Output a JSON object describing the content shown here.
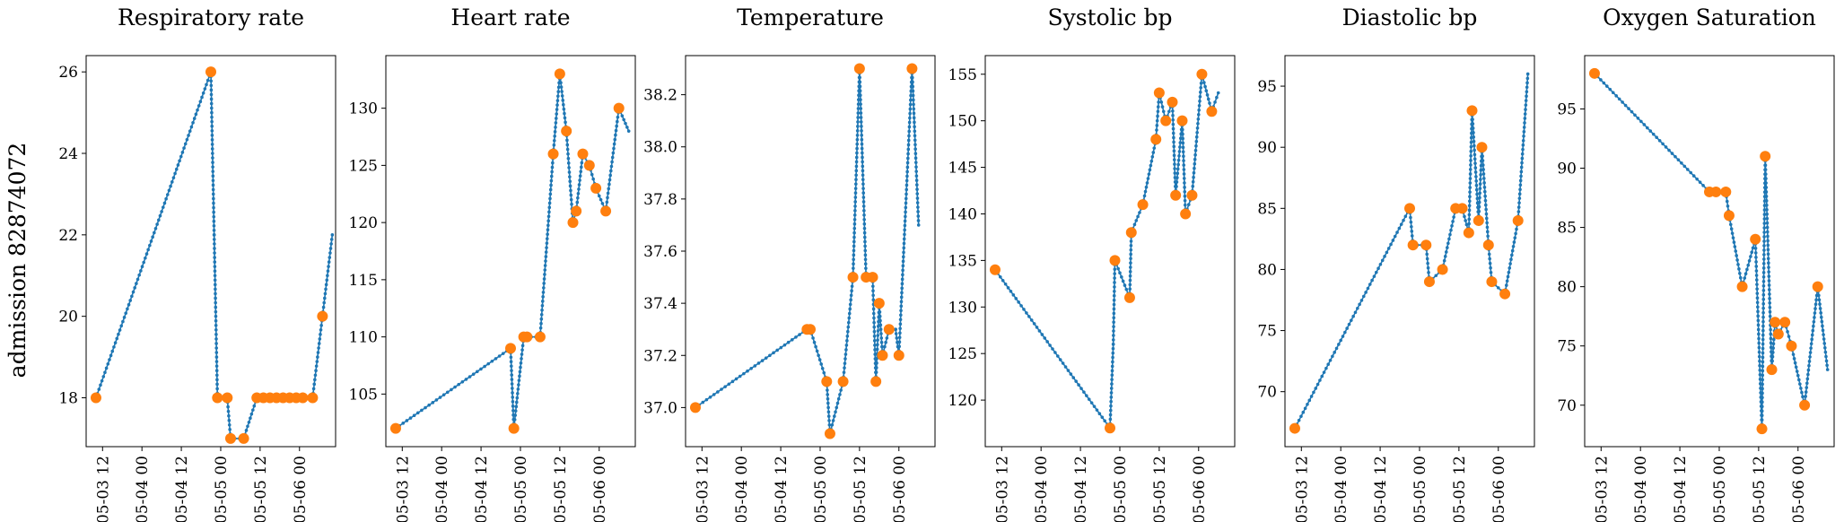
{
  "row_label": "admission 82874072",
  "colors": {
    "line": "#1f77b4",
    "highlight": "#ff7f0e"
  },
  "chart_data": [
    {
      "type": "line",
      "title": "Respiratory rate",
      "x_ticks": [
        "05-03 12",
        "05-04 00",
        "05-04 12",
        "05-05 00",
        "05-05 12",
        "05-06 00"
      ],
      "y_ticks": [
        "18",
        "20",
        "22",
        "24",
        "26"
      ],
      "ylim": [
        16.8,
        26.4
      ],
      "series": [
        {
          "values": [
            {
              "t": "05-03 10:00",
              "v": 18
            },
            {
              "t": "05-04 21:00",
              "v": 26
            },
            {
              "t": "05-04 22:00",
              "v": 22
            },
            {
              "t": "05-04 23:00",
              "v": 18
            },
            {
              "t": "05-05 02:00",
              "v": 18
            },
            {
              "t": "05-05 03:00",
              "v": 17
            },
            {
              "t": "05-05 07:00",
              "v": 17
            },
            {
              "t": "05-05 11:00",
              "v": 18
            },
            {
              "t": "05-05 13:00",
              "v": 18
            },
            {
              "t": "05-05 15:00",
              "v": 18
            },
            {
              "t": "05-05 17:00",
              "v": 18
            },
            {
              "t": "05-05 19:00",
              "v": 18
            },
            {
              "t": "05-05 21:00",
              "v": 18
            },
            {
              "t": "05-05 23:00",
              "v": 18
            },
            {
              "t": "05-06 01:00",
              "v": 18
            },
            {
              "t": "05-06 04:00",
              "v": 18
            },
            {
              "t": "05-06 07:00",
              "v": 20
            },
            {
              "t": "05-06 10:00",
              "v": 22
            }
          ]
        }
      ],
      "highlight": [
        {
          "t": "05-03 10:00",
          "v": 18
        },
        {
          "t": "05-04 21:00",
          "v": 26
        },
        {
          "t": "05-04 23:00",
          "v": 18
        },
        {
          "t": "05-05 02:00",
          "v": 18
        },
        {
          "t": "05-05 03:00",
          "v": 17
        },
        {
          "t": "05-05 07:00",
          "v": 17
        },
        {
          "t": "05-05 11:00",
          "v": 18
        },
        {
          "t": "05-05 13:00",
          "v": 18
        },
        {
          "t": "05-05 15:00",
          "v": 18
        },
        {
          "t": "05-05 17:00",
          "v": 18
        },
        {
          "t": "05-05 19:00",
          "v": 18
        },
        {
          "t": "05-05 21:00",
          "v": 18
        },
        {
          "t": "05-05 23:00",
          "v": 18
        },
        {
          "t": "05-06 01:00",
          "v": 18
        },
        {
          "t": "05-06 04:00",
          "v": 18
        },
        {
          "t": "05-06 07:00",
          "v": 20
        }
      ]
    },
    {
      "type": "line",
      "title": "Heart rate",
      "x_ticks": [
        "05-03 12",
        "05-04 00",
        "05-04 12",
        "05-05 00",
        "05-05 12",
        "05-06 00"
      ],
      "y_ticks": [
        "105",
        "110",
        "115",
        "120",
        "125",
        "130"
      ],
      "ylim": [
        100.4,
        134.6
      ],
      "series": [
        {
          "values": [
            {
              "t": "05-03 10:00",
              "v": 102
            },
            {
              "t": "05-04 21:00",
              "v": 109
            },
            {
              "t": "05-04 22:00",
              "v": 102
            },
            {
              "t": "05-05 01:00",
              "v": 110
            },
            {
              "t": "05-05 02:00",
              "v": 110
            },
            {
              "t": "05-05 06:00",
              "v": 110
            },
            {
              "t": "05-05 10:00",
              "v": 126
            },
            {
              "t": "05-05 12:00",
              "v": 133
            },
            {
              "t": "05-05 14:00",
              "v": 128
            },
            {
              "t": "05-05 16:00",
              "v": 120
            },
            {
              "t": "05-05 17:00",
              "v": 121
            },
            {
              "t": "05-05 19:00",
              "v": 126
            },
            {
              "t": "05-05 21:00",
              "v": 125
            },
            {
              "t": "05-05 23:00",
              "v": 123
            },
            {
              "t": "05-06 02:00",
              "v": 121
            },
            {
              "t": "05-06 06:00",
              "v": 130
            },
            {
              "t": "05-06 09:00",
              "v": 128
            }
          ]
        }
      ],
      "highlight": [
        {
          "t": "05-03 10:00",
          "v": 102
        },
        {
          "t": "05-04 21:00",
          "v": 109
        },
        {
          "t": "05-04 22:00",
          "v": 102
        },
        {
          "t": "05-05 01:00",
          "v": 110
        },
        {
          "t": "05-05 02:00",
          "v": 110
        },
        {
          "t": "05-05 06:00",
          "v": 110
        },
        {
          "t": "05-05 10:00",
          "v": 126
        },
        {
          "t": "05-05 12:00",
          "v": 133
        },
        {
          "t": "05-05 14:00",
          "v": 128
        },
        {
          "t": "05-05 16:00",
          "v": 120
        },
        {
          "t": "05-05 17:00",
          "v": 121
        },
        {
          "t": "05-05 19:00",
          "v": 126
        },
        {
          "t": "05-05 21:00",
          "v": 125
        },
        {
          "t": "05-05 23:00",
          "v": 123
        },
        {
          "t": "05-06 02:00",
          "v": 121
        },
        {
          "t": "05-06 06:00",
          "v": 130
        }
      ]
    },
    {
      "type": "line",
      "title": "Temperature",
      "x_ticks": [
        "05-03 12",
        "05-04 00",
        "05-04 12",
        "05-05 00",
        "05-05 12",
        "05-06 00"
      ],
      "y_ticks": [
        "37.0",
        "37.2",
        "37.4",
        "37.6",
        "37.8",
        "38.0",
        "38.2"
      ],
      "ylim": [
        36.85,
        38.35
      ],
      "series": [
        {
          "values": [
            {
              "t": "05-03 10:00",
              "v": 37.0
            },
            {
              "t": "05-04 20:00",
              "v": 37.3
            },
            {
              "t": "05-04 21:00",
              "v": 37.3
            },
            {
              "t": "05-05 02:00",
              "v": 37.1
            },
            {
              "t": "05-05 03:00",
              "v": 36.9
            },
            {
              "t": "05-05 07:00",
              "v": 37.1
            },
            {
              "t": "05-05 10:00",
              "v": 37.5
            },
            {
              "t": "05-05 12:00",
              "v": 38.3
            },
            {
              "t": "05-05 14:00",
              "v": 37.5
            },
            {
              "t": "05-05 16:00",
              "v": 37.5
            },
            {
              "t": "05-05 17:00",
              "v": 37.1
            },
            {
              "t": "05-05 18:00",
              "v": 37.4
            },
            {
              "t": "05-05 19:00",
              "v": 37.2
            },
            {
              "t": "05-05 21:00",
              "v": 37.3
            },
            {
              "t": "05-05 23:00",
              "v": 37.3
            },
            {
              "t": "05-06 00:00",
              "v": 37.2
            },
            {
              "t": "05-06 04:00",
              "v": 38.3
            },
            {
              "t": "05-06 06:00",
              "v": 37.7
            }
          ]
        }
      ],
      "highlight": [
        {
          "t": "05-03 10:00",
          "v": 37.0
        },
        {
          "t": "05-04 20:00",
          "v": 37.3
        },
        {
          "t": "05-04 21:00",
          "v": 37.3
        },
        {
          "t": "05-05 02:00",
          "v": 37.1
        },
        {
          "t": "05-05 03:00",
          "v": 36.9
        },
        {
          "t": "05-05 07:00",
          "v": 37.1
        },
        {
          "t": "05-05 10:00",
          "v": 37.5
        },
        {
          "t": "05-05 12:00",
          "v": 38.3
        },
        {
          "t": "05-05 14:00",
          "v": 37.5
        },
        {
          "t": "05-05 16:00",
          "v": 37.5
        },
        {
          "t": "05-05 17:00",
          "v": 37.1
        },
        {
          "t": "05-05 18:00",
          "v": 37.4
        },
        {
          "t": "05-05 19:00",
          "v": 37.2
        },
        {
          "t": "05-05 21:00",
          "v": 37.3
        },
        {
          "t": "05-06 00:00",
          "v": 37.2
        },
        {
          "t": "05-06 04:00",
          "v": 38.3
        }
      ]
    },
    {
      "type": "line",
      "title": "Systolic bp",
      "x_ticks": [
        "05-03 12",
        "05-04 00",
        "05-04 12",
        "05-05 00",
        "05-05 12",
        "05-06 00"
      ],
      "y_ticks": [
        "120",
        "125",
        "130",
        "135",
        "140",
        "145",
        "150",
        "155"
      ],
      "ylim": [
        115.0,
        157.0
      ],
      "series": [
        {
          "values": [
            {
              "t": "05-03 10:00",
              "v": 134
            },
            {
              "t": "05-04 21:00",
              "v": 117
            },
            {
              "t": "05-04 22:00",
              "v": 126
            },
            {
              "t": "05-04 22:30",
              "v": 135
            },
            {
              "t": "05-05 03:00",
              "v": 131
            },
            {
              "t": "05-05 03:30",
              "v": 138
            },
            {
              "t": "05-05 07:00",
              "v": 141
            },
            {
              "t": "05-05 11:00",
              "v": 148
            },
            {
              "t": "05-05 12:00",
              "v": 153
            },
            {
              "t": "05-05 14:00",
              "v": 150
            },
            {
              "t": "05-05 16:00",
              "v": 152
            },
            {
              "t": "05-05 17:00",
              "v": 142
            },
            {
              "t": "05-05 19:00",
              "v": 150
            },
            {
              "t": "05-05 20:00",
              "v": 140
            },
            {
              "t": "05-05 22:00",
              "v": 142
            },
            {
              "t": "05-06 01:00",
              "v": 155
            },
            {
              "t": "05-06 04:00",
              "v": 151
            },
            {
              "t": "05-06 06:00",
              "v": 153
            }
          ]
        }
      ],
      "highlight": [
        {
          "t": "05-03 10:00",
          "v": 134
        },
        {
          "t": "05-04 21:00",
          "v": 117
        },
        {
          "t": "05-04 22:30",
          "v": 135
        },
        {
          "t": "05-05 03:00",
          "v": 131
        },
        {
          "t": "05-05 03:30",
          "v": 138
        },
        {
          "t": "05-05 07:00",
          "v": 141
        },
        {
          "t": "05-05 11:00",
          "v": 148
        },
        {
          "t": "05-05 12:00",
          "v": 153
        },
        {
          "t": "05-05 14:00",
          "v": 150
        },
        {
          "t": "05-05 16:00",
          "v": 152
        },
        {
          "t": "05-05 17:00",
          "v": 142
        },
        {
          "t": "05-05 19:00",
          "v": 150
        },
        {
          "t": "05-05 20:00",
          "v": 140
        },
        {
          "t": "05-05 22:00",
          "v": 142
        },
        {
          "t": "05-06 01:00",
          "v": 155
        },
        {
          "t": "05-06 04:00",
          "v": 151
        }
      ]
    },
    {
      "type": "line",
      "title": "Diastolic bp",
      "x_ticks": [
        "05-03 12",
        "05-04 00",
        "05-04 12",
        "05-05 00",
        "05-05 12",
        "05-06 00"
      ],
      "y_ticks": [
        "70",
        "75",
        "80",
        "85",
        "90",
        "95"
      ],
      "ylim": [
        65.5,
        97.5
      ],
      "series": [
        {
          "values": [
            {
              "t": "05-03 10:00",
              "v": 67
            },
            {
              "t": "05-04 21:00",
              "v": 85
            },
            {
              "t": "05-04 22:00",
              "v": 82
            },
            {
              "t": "05-05 02:00",
              "v": 82
            },
            {
              "t": "05-05 03:00",
              "v": 79
            },
            {
              "t": "05-05 07:00",
              "v": 80
            },
            {
              "t": "05-05 11:00",
              "v": 85
            },
            {
              "t": "05-05 13:00",
              "v": 85
            },
            {
              "t": "05-05 15:00",
              "v": 83
            },
            {
              "t": "05-05 16:00",
              "v": 93
            },
            {
              "t": "05-05 18:00",
              "v": 84
            },
            {
              "t": "05-05 19:00",
              "v": 90
            },
            {
              "t": "05-05 21:00",
              "v": 82
            },
            {
              "t": "05-05 22:00",
              "v": 79
            },
            {
              "t": "05-06 02:00",
              "v": 78
            },
            {
              "t": "05-06 06:00",
              "v": 84
            },
            {
              "t": "05-06 09:00",
              "v": 96
            }
          ]
        }
      ],
      "highlight": [
        {
          "t": "05-03 10:00",
          "v": 67
        },
        {
          "t": "05-04 21:00",
          "v": 85
        },
        {
          "t": "05-04 22:00",
          "v": 82
        },
        {
          "t": "05-05 02:00",
          "v": 82
        },
        {
          "t": "05-05 03:00",
          "v": 79
        },
        {
          "t": "05-05 07:00",
          "v": 80
        },
        {
          "t": "05-05 11:00",
          "v": 85
        },
        {
          "t": "05-05 13:00",
          "v": 85
        },
        {
          "t": "05-05 15:00",
          "v": 83
        },
        {
          "t": "05-05 16:00",
          "v": 93
        },
        {
          "t": "05-05 18:00",
          "v": 84
        },
        {
          "t": "05-05 19:00",
          "v": 90
        },
        {
          "t": "05-05 21:00",
          "v": 82
        },
        {
          "t": "05-05 22:00",
          "v": 79
        },
        {
          "t": "05-06 02:00",
          "v": 78
        },
        {
          "t": "05-06 06:00",
          "v": 84
        }
      ]
    },
    {
      "type": "line",
      "title": "Oxygen Saturation",
      "x_ticks": [
        "05-03 12",
        "05-04 00",
        "05-04 12",
        "05-05 00",
        "05-05 12",
        "05-06 00"
      ],
      "y_ticks": [
        "70",
        "75",
        "80",
        "85",
        "90",
        "95"
      ],
      "ylim": [
        66.5,
        99.5
      ],
      "series": [
        {
          "values": [
            {
              "t": "05-03 10:00",
              "v": 98
            },
            {
              "t": "05-04 21:00",
              "v": 88
            },
            {
              "t": "05-04 23:00",
              "v": 88
            },
            {
              "t": "05-05 02:00",
              "v": 88
            },
            {
              "t": "05-05 03:00",
              "v": 86
            },
            {
              "t": "05-05 07:00",
              "v": 80
            },
            {
              "t": "05-05 11:00",
              "v": 84
            },
            {
              "t": "05-05 13:00",
              "v": 68
            },
            {
              "t": "05-05 14:00",
              "v": 91
            },
            {
              "t": "05-05 16:00",
              "v": 73
            },
            {
              "t": "05-05 17:00",
              "v": 77
            },
            {
              "t": "05-05 18:00",
              "v": 76
            },
            {
              "t": "05-05 20:00",
              "v": 77
            },
            {
              "t": "05-05 22:00",
              "v": 75
            },
            {
              "t": "05-06 02:00",
              "v": 70
            },
            {
              "t": "05-06 06:00",
              "v": 80
            },
            {
              "t": "05-06 09:00",
              "v": 73
            }
          ]
        }
      ],
      "highlight": [
        {
          "t": "05-03 10:00",
          "v": 98
        },
        {
          "t": "05-04 21:00",
          "v": 88
        },
        {
          "t": "05-04 23:00",
          "v": 88
        },
        {
          "t": "05-05 02:00",
          "v": 88
        },
        {
          "t": "05-05 03:00",
          "v": 86
        },
        {
          "t": "05-05 07:00",
          "v": 80
        },
        {
          "t": "05-05 11:00",
          "v": 84
        },
        {
          "t": "05-05 13:00",
          "v": 68
        },
        {
          "t": "05-05 14:00",
          "v": 91
        },
        {
          "t": "05-05 16:00",
          "v": 73
        },
        {
          "t": "05-05 17:00",
          "v": 77
        },
        {
          "t": "05-05 18:00",
          "v": 76
        },
        {
          "t": "05-05 20:00",
          "v": 77
        },
        {
          "t": "05-05 22:00",
          "v": 75
        },
        {
          "t": "05-06 02:00",
          "v": 70
        },
        {
          "t": "05-06 06:00",
          "v": 80
        }
      ]
    }
  ]
}
